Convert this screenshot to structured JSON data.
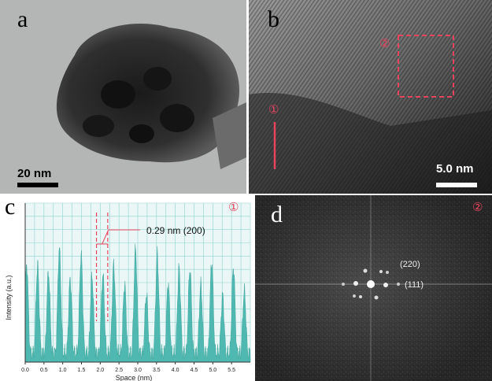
{
  "figure": {
    "panel_a": {
      "label": "a",
      "scale_bar": "20 nm"
    },
    "panel_b": {
      "label": "b",
      "scale_bar": "5.0 nm",
      "region_1": "①",
      "region_2": "②"
    },
    "panel_c": {
      "label": "c",
      "region_marker": "①",
      "annotation": "0.29 nm  (200)"
    },
    "panel_d": {
      "label": "d",
      "region_marker": "②",
      "spot_220": "(220)",
      "spot_111": "(111)"
    }
  },
  "chart_data": {
    "type": "line",
    "title": "",
    "xlabel": "Space (nm)",
    "ylabel": "Intensity (a.u.)",
    "xlim": [
      0,
      6.0
    ],
    "x_ticks": [
      "0.0",
      "0.5",
      "1.0",
      "1.5",
      "2.0",
      "2.5",
      "3.0",
      "3.5",
      "4.0",
      "4.5",
      "5.0",
      "5.5"
    ],
    "y_ticks_labeled": false,
    "grid": true,
    "series": [
      {
        "color": "#4fb8b0",
        "period_nm": 0.29,
        "peak_x": [
          0.04,
          0.33,
          0.62,
          0.91,
          1.2,
          1.49,
          1.78,
          2.07,
          2.36,
          2.65,
          2.94,
          3.23,
          3.52,
          3.81,
          4.1,
          4.39,
          4.68,
          4.97,
          5.26,
          5.55,
          5.84
        ],
        "peak_height_rel": [
          0.62,
          0.56,
          0.66,
          0.6,
          0.64,
          0.58,
          0.6,
          0.55,
          0.57,
          0.58,
          0.6,
          0.55,
          0.58,
          0.56,
          0.58,
          0.55,
          0.57,
          0.52,
          0.54,
          0.5,
          0.52
        ]
      }
    ],
    "annotation": {
      "text": "0.29 nm  (200)",
      "x_range": [
        1.9,
        2.2
      ]
    }
  }
}
